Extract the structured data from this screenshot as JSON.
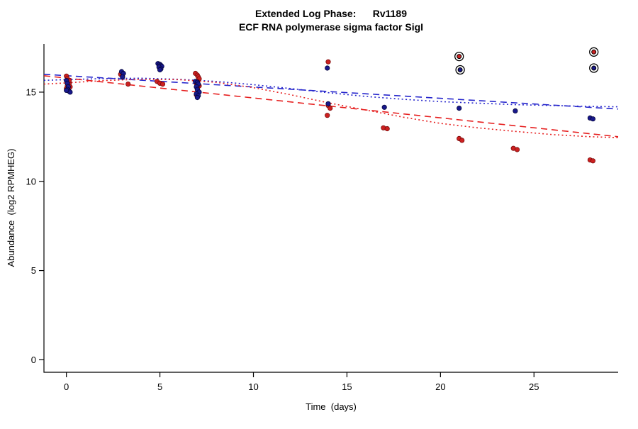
{
  "chart_data": {
    "type": "scatter",
    "title": "Extended Log Phase:      Rv1189",
    "subtitle": "ECF RNA polymerase sigma factor SigI",
    "xlabel": "Time  (days)",
    "ylabel": "Abundance  (log2 RPMHEG)",
    "xlim": [
      -1.2,
      29.5
    ],
    "ylim": [
      -0.7,
      17.7
    ],
    "xticks": [
      0,
      5,
      10,
      15,
      20,
      25
    ],
    "yticks": [
      0,
      5,
      10,
      15
    ],
    "grid": false,
    "legend": "none",
    "colors": {
      "axis": "#000000",
      "red_point": "#cc2020",
      "red_point_stroke": "#7a0c0c",
      "blue_point": "#18188c",
      "blue_point_stroke": "#05053c",
      "red_line": "#e62020",
      "blue_line": "#2626cc",
      "outlier_ring": "#000000"
    },
    "series": [
      {
        "name": "red",
        "color_key": "red_point",
        "stroke_key": "red_point_stroke",
        "points": [
          [
            0.0,
            15.9
          ],
          [
            0.05,
            15.75
          ],
          [
            0.1,
            15.6
          ],
          [
            0.15,
            15.5
          ],
          [
            0.05,
            15.35
          ],
          [
            0.2,
            15.3
          ],
          [
            0.0,
            15.2
          ],
          [
            0.15,
            15.65
          ],
          [
            2.9,
            16.0
          ],
          [
            3.0,
            15.9
          ],
          [
            3.3,
            15.45
          ],
          [
            4.85,
            15.6
          ],
          [
            5.0,
            15.5
          ],
          [
            5.15,
            15.45
          ],
          [
            6.9,
            16.05
          ],
          [
            7.0,
            15.95
          ],
          [
            7.05,
            15.85
          ],
          [
            7.1,
            15.75
          ],
          [
            7.0,
            15.6
          ],
          [
            6.95,
            15.5
          ],
          [
            7.1,
            15.35
          ],
          [
            7.0,
            15.25
          ],
          [
            7.05,
            14.95
          ],
          [
            6.95,
            14.85
          ],
          [
            14.0,
            16.7
          ],
          [
            14.0,
            14.25
          ],
          [
            14.1,
            14.1
          ],
          [
            13.95,
            13.7
          ],
          [
            16.95,
            13.0
          ],
          [
            17.15,
            12.95
          ],
          [
            21.0,
            12.4
          ],
          [
            21.15,
            12.3
          ],
          [
            23.9,
            11.85
          ],
          [
            24.1,
            11.78
          ],
          [
            28.0,
            11.2
          ],
          [
            28.15,
            11.15
          ]
        ]
      },
      {
        "name": "blue",
        "color_key": "blue_point",
        "stroke_key": "blue_point_stroke",
        "points": [
          [
            0.0,
            15.65
          ],
          [
            0.05,
            15.5
          ],
          [
            0.1,
            15.3
          ],
          [
            0.05,
            15.15
          ],
          [
            0.15,
            15.05
          ],
          [
            0.2,
            15.0
          ],
          [
            0.0,
            15.1
          ],
          [
            2.95,
            16.15
          ],
          [
            3.05,
            16.05
          ],
          [
            3.0,
            15.85
          ],
          [
            4.9,
            16.6
          ],
          [
            5.0,
            16.55
          ],
          [
            5.05,
            16.5
          ],
          [
            5.1,
            16.45
          ],
          [
            4.95,
            16.4
          ],
          [
            5.05,
            16.3
          ],
          [
            5.0,
            16.25
          ],
          [
            6.9,
            15.6
          ],
          [
            7.0,
            15.55
          ],
          [
            7.05,
            15.45
          ],
          [
            6.95,
            15.3
          ],
          [
            7.0,
            15.15
          ],
          [
            7.1,
            15.0
          ],
          [
            6.95,
            14.9
          ],
          [
            7.05,
            14.8
          ],
          [
            7.0,
            14.7
          ],
          [
            13.95,
            16.35
          ],
          [
            14.0,
            14.35
          ],
          [
            17.0,
            14.15
          ],
          [
            21.0,
            14.1
          ],
          [
            24.0,
            13.95
          ],
          [
            28.0,
            13.55
          ],
          [
            28.15,
            13.5
          ]
        ]
      }
    ],
    "outliers": [
      {
        "x": 21.0,
        "y": 17.0,
        "series": "red"
      },
      {
        "x": 21.05,
        "y": 16.25,
        "series": "blue"
      },
      {
        "x": 28.2,
        "y": 17.25,
        "series": "red"
      },
      {
        "x": 28.2,
        "y": 16.35,
        "series": "blue"
      }
    ],
    "curves": [
      {
        "name": "blue-dashed-fit",
        "color_key": "blue_line",
        "dash": "long",
        "points": [
          [
            -1.2,
            16.0
          ],
          [
            29.5,
            14.05
          ]
        ]
      },
      {
        "name": "blue-dotted-fit",
        "color_key": "blue_line",
        "dash": "dot",
        "points": [
          [
            -1.2,
            15.66
          ],
          [
            0,
            15.7
          ],
          [
            2,
            15.76
          ],
          [
            4,
            15.78
          ],
          [
            6,
            15.72
          ],
          [
            8,
            15.6
          ],
          [
            10,
            15.42
          ],
          [
            12,
            15.2
          ],
          [
            14,
            14.97
          ],
          [
            16,
            14.76
          ],
          [
            18,
            14.6
          ],
          [
            20,
            14.47
          ],
          [
            22,
            14.38
          ],
          [
            24,
            14.3
          ],
          [
            26,
            14.25
          ],
          [
            28,
            14.2
          ],
          [
            29.5,
            14.18
          ]
        ]
      },
      {
        "name": "red-dashed-fit",
        "color_key": "red_line",
        "dash": "long",
        "points": [
          [
            -1.2,
            15.92
          ],
          [
            29.5,
            12.5
          ]
        ]
      },
      {
        "name": "red-dotted-fit",
        "color_key": "red_line",
        "dash": "dot",
        "points": [
          [
            -1.2,
            15.45
          ],
          [
            0,
            15.52
          ],
          [
            2,
            15.65
          ],
          [
            4,
            15.72
          ],
          [
            6,
            15.7
          ],
          [
            8,
            15.55
          ],
          [
            10,
            15.25
          ],
          [
            12,
            14.85
          ],
          [
            14,
            14.4
          ],
          [
            16,
            14.0
          ],
          [
            18,
            13.6
          ],
          [
            20,
            13.25
          ],
          [
            22,
            13.0
          ],
          [
            24,
            12.8
          ],
          [
            26,
            12.62
          ],
          [
            28,
            12.5
          ],
          [
            29.5,
            12.45
          ]
        ]
      }
    ]
  }
}
